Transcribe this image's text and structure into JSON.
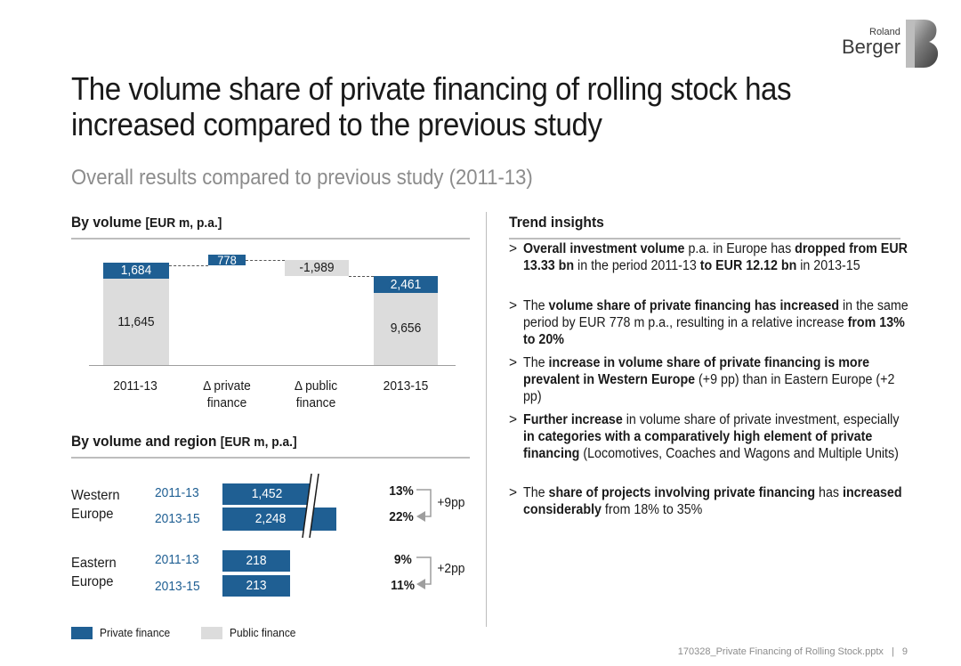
{
  "brand": {
    "line1": "Roland",
    "line2": "Berger",
    "mark": "B"
  },
  "title": "The volume share of private financing of rolling stock has increased compared to the previous study",
  "subtitle": "Overall results compared to previous study (2011-13)",
  "volume_section": {
    "label": "By volume",
    "unit": "[EUR m, p.a.]"
  },
  "region_section": {
    "label": "By volume and region",
    "unit": "[EUR m, p.a.]"
  },
  "insights_section": {
    "label": "Trend insights"
  },
  "colors": {
    "private": "#1f5f93",
    "public": "#dcdcdc"
  },
  "chart_data": [
    {
      "type": "bar",
      "variant": "waterfall",
      "categories": [
        "2011-13",
        "Δ private finance",
        "Δ public finance",
        "2013-15"
      ],
      "series": [
        {
          "name": "Private finance",
          "values": [
            1684,
            778,
            null,
            2461
          ]
        },
        {
          "name": "Public finance",
          "values": [
            11645,
            null,
            -1989,
            9656
          ]
        }
      ],
      "labels": {
        "c0_private": "1,684",
        "c0_public": "11,645",
        "c1_private": "778",
        "c2_public": "-1,989",
        "c3_private": "2,461",
        "c3_public": "9,656"
      },
      "tick_labels": {
        "c0": "2011-13",
        "c1_line1": "Δ private",
        "c1_line2": "finance",
        "c2_line1": "Δ public",
        "c2_line2": "finance",
        "c3": "2013-15"
      }
    },
    {
      "type": "bar",
      "variant": "horizontal-broken-axis",
      "categories": [
        "Western Europe 2011-13",
        "Western Europe 2013-15",
        "Eastern Europe 2011-13",
        "Eastern Europe 2013-15"
      ],
      "series": [
        {
          "name": "Private finance",
          "values": [
            1452,
            2248,
            218,
            213
          ]
        }
      ],
      "regions": [
        {
          "name_line1": "Western",
          "name_line2": "Europe",
          "rows": [
            {
              "period": "2011-13",
              "value": 1452,
              "label": "1,452",
              "share": "13%"
            },
            {
              "period": "2013-15",
              "value": 2248,
              "label": "2,248",
              "share": "22%"
            }
          ],
          "change": "+9pp"
        },
        {
          "name_line1": "Eastern",
          "name_line2": "Europe",
          "rows": [
            {
              "period": "2011-13",
              "value": 218,
              "label": "218",
              "share": "9%"
            },
            {
              "period": "2013-15",
              "value": 213,
              "label": "213",
              "share": "11%"
            }
          ],
          "change": "+2pp"
        }
      ]
    }
  ],
  "legend": {
    "private": "Private finance",
    "public": "Public finance"
  },
  "insights": [
    {
      "bullet": ">",
      "parts": [
        {
          "t": "Overall investment volume",
          "b": true
        },
        {
          "t": " p.a. in Europe has ",
          "b": false
        },
        {
          "t": "dropped from EUR 13.33 bn",
          "b": true
        },
        {
          "t": " in the period 2011-13 ",
          "b": false
        },
        {
          "t": "to EUR 12.12 bn",
          "b": true
        },
        {
          "t": " in 2013-15",
          "b": false
        }
      ]
    },
    {
      "bullet": ">",
      "parts": [
        {
          "t": "The ",
          "b": false
        },
        {
          "t": "volume share of private financing has increased",
          "b": true
        },
        {
          "t": " in the same period by EUR 778 m p.a., resulting in a relative increase ",
          "b": false
        },
        {
          "t": "from 13% to 20%",
          "b": true
        }
      ]
    },
    {
      "bullet": ">",
      "parts": [
        {
          "t": "The ",
          "b": false
        },
        {
          "t": "increase in volume share of private financing is more prevalent in Western Europe",
          "b": true
        },
        {
          "t": " (+9 pp) than in Eastern Europe (+2 pp)",
          "b": false
        }
      ]
    },
    {
      "bullet": ">",
      "parts": [
        {
          "t": "Further increase",
          "b": true
        },
        {
          "t": " in volume share of private investment, especially ",
          "b": false
        },
        {
          "t": "in categories with a comparatively high element of private financing",
          "b": true
        },
        {
          "t": " (Locomotives, Coaches and Wagons and Multiple Units)",
          "b": false
        }
      ]
    },
    {
      "bullet": ">",
      "parts": [
        {
          "t": "The ",
          "b": false
        },
        {
          "t": "share of projects involving private financing",
          "b": true
        },
        {
          "t": " has ",
          "b": false
        },
        {
          "t": "increased considerably",
          "b": true
        },
        {
          "t": " from 18% to 35%",
          "b": false
        }
      ]
    }
  ],
  "footer": {
    "file": "170328_Private Financing of Rolling Stock.pptx",
    "sep": "|",
    "page": "9"
  }
}
